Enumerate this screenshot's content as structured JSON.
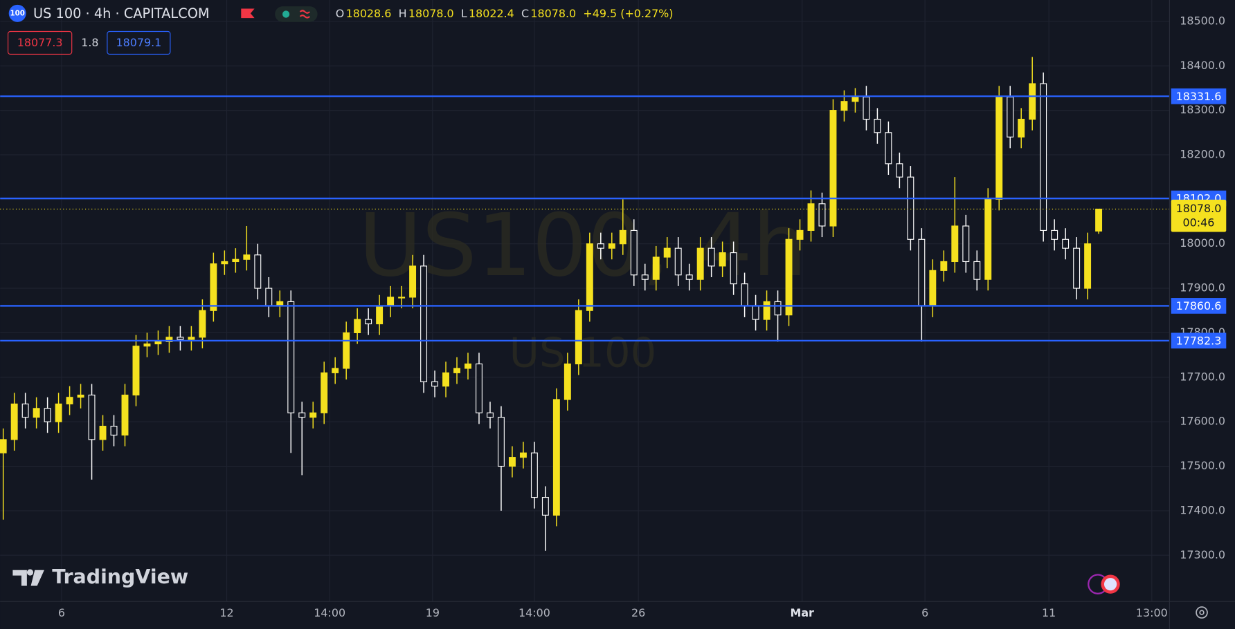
{
  "header": {
    "badge": "100",
    "title": "US 100 · 4h · CAPITALCOM",
    "ohlc": [
      {
        "key": "O",
        "value": "18028.6"
      },
      {
        "key": "H",
        "value": "18078.0"
      },
      {
        "key": "L",
        "value": "18022.4"
      },
      {
        "key": "C",
        "value": "18078.0"
      }
    ],
    "change": "+49.5 (+0.27%)",
    "bid": "18077.3",
    "spread": "1.8",
    "ask": "18079.1"
  },
  "watermark": {
    "main": "US100, 4h",
    "sub": "US 100"
  },
  "logo": "TradingView",
  "chart_data": {
    "type": "candlestick",
    "up_color": "#f5e11f",
    "down_color": "#ffffff",
    "grid": true,
    "x": [
      0,
      1,
      2,
      3,
      4,
      5,
      6,
      7,
      8,
      9,
      10,
      11,
      12,
      13,
      14,
      15,
      16,
      17,
      18,
      19,
      20,
      21,
      22,
      23,
      24,
      25,
      26,
      27,
      28,
      29,
      30,
      31,
      32,
      33,
      34,
      35,
      36,
      37,
      38,
      39,
      40,
      41,
      42,
      43,
      44,
      45,
      46,
      47,
      48,
      49,
      50,
      51,
      52,
      53,
      54,
      55,
      56,
      57,
      58,
      59,
      60,
      61,
      62,
      63,
      64,
      65,
      66,
      67,
      68,
      69,
      70,
      71,
      72,
      73,
      74,
      75,
      76,
      77,
      78,
      79,
      80,
      81,
      82,
      83,
      84,
      85,
      86,
      87,
      88,
      89,
      90,
      91,
      92,
      93,
      94,
      95,
      96,
      97,
      98,
      99
    ],
    "open": [
      17530,
      17560,
      17640,
      17610,
      17630,
      17600,
      17640,
      17655,
      17660,
      17560,
      17590,
      17570,
      17660,
      17770,
      17775,
      17780,
      17790,
      17785,
      17790,
      17850,
      17955,
      17960,
      17965,
      17975,
      17900,
      17860,
      17870,
      17620,
      17610,
      17620,
      17710,
      17720,
      17800,
      17830,
      17820,
      17860,
      17880,
      17880,
      17950,
      17690,
      17680,
      17710,
      17720,
      17730,
      17620,
      17610,
      17500,
      17520,
      17530,
      17430,
      17390,
      17650,
      17730,
      17850,
      18000,
      17990,
      18000,
      18030,
      17930,
      17920,
      17970,
      17990,
      17930,
      17920,
      17990,
      17950,
      17980,
      17910,
      17860,
      17830,
      17870,
      17840,
      18010,
      18030,
      18090,
      18040,
      18300,
      18320,
      18330,
      18280,
      18250,
      18180,
      18150,
      18010,
      17860,
      17940,
      17960,
      18040,
      17960,
      17920,
      18100,
      18330,
      18240,
      18280,
      18360,
      18030,
      18010,
      17990,
      17900,
      18028.6
    ],
    "high": [
      17585,
      17665,
      17665,
      17655,
      17655,
      17665,
      17680,
      17685,
      17685,
      17615,
      17615,
      17685,
      17795,
      17800,
      17805,
      17815,
      17815,
      17815,
      17875,
      17980,
      17985,
      17990,
      18040,
      18000,
      17925,
      17895,
      17895,
      17645,
      17645,
      17735,
      17745,
      17825,
      17855,
      17855,
      17885,
      17905,
      17905,
      17975,
      17975,
      17715,
      17735,
      17745,
      17755,
      17755,
      17645,
      17635,
      17545,
      17555,
      17555,
      17455,
      17675,
      17755,
      17875,
      18025,
      18025,
      18025,
      18100,
      18055,
      17955,
      17995,
      18015,
      18015,
      17955,
      18015,
      18015,
      18005,
      18005,
      17935,
      17885,
      17895,
      17895,
      18035,
      18055,
      18120,
      18115,
      18325,
      18345,
      18350,
      18355,
      18305,
      18275,
      18205,
      18175,
      18035,
      17965,
      17985,
      18150,
      18065,
      17985,
      18125,
      18355,
      18355,
      18305,
      18420,
      18385,
      18055,
      18035,
      18015,
      18025,
      18078
    ],
    "low": [
      17380,
      17535,
      17585,
      17585,
      17575,
      17575,
      17615,
      17630,
      17470,
      17535,
      17545,
      17545,
      17635,
      17745,
      17750,
      17755,
      17760,
      17760,
      17765,
      17825,
      17930,
      17935,
      17940,
      17875,
      17835,
      17835,
      17530,
      17480,
      17585,
      17595,
      17685,
      17695,
      17775,
      17795,
      17795,
      17835,
      17855,
      17855,
      17665,
      17655,
      17655,
      17685,
      17695,
      17595,
      17585,
      17400,
      17475,
      17495,
      17405,
      17310,
      17365,
      17625,
      17705,
      17825,
      17965,
      17965,
      17975,
      17905,
      17895,
      17895,
      17945,
      17905,
      17895,
      17895,
      17925,
      17925,
      17885,
      17835,
      17805,
      17805,
      17780,
      17815,
      17985,
      18005,
      18015,
      18015,
      18275,
      18295,
      18255,
      18225,
      18155,
      18125,
      17985,
      17780,
      17835,
      17915,
      17935,
      17935,
      17895,
      17895,
      18075,
      18215,
      18215,
      18255,
      18005,
      17985,
      17965,
      17875,
      17875,
      18022.4
    ],
    "close": [
      17560,
      17640,
      17610,
      17630,
      17600,
      17640,
      17655,
      17660,
      17560,
      17590,
      17570,
      17660,
      17770,
      17775,
      17780,
      17790,
      17785,
      17790,
      17850,
      17955,
      17960,
      17965,
      17975,
      17900,
      17860,
      17870,
      17620,
      17610,
      17620,
      17710,
      17720,
      17800,
      17830,
      17820,
      17860,
      17880,
      17880,
      17950,
      17690,
      17680,
      17710,
      17720,
      17730,
      17620,
      17610,
      17500,
      17520,
      17530,
      17430,
      17390,
      17650,
      17730,
      17850,
      18000,
      17990,
      18000,
      18030,
      17930,
      17920,
      17970,
      17990,
      17930,
      17920,
      17990,
      17950,
      17980,
      17910,
      17860,
      17830,
      17870,
      17840,
      18010,
      18030,
      18090,
      18040,
      18300,
      18320,
      18330,
      18280,
      18250,
      18180,
      18150,
      18010,
      17860,
      17940,
      17960,
      18040,
      17960,
      17920,
      18100,
      18330,
      18240,
      18280,
      18360,
      18030,
      18010,
      17990,
      17900,
      18000,
      18078
    ],
    "xlim": [
      -0.28,
      105.4
    ],
    "ylim": [
      17196,
      18548
    ],
    "yticks": [
      {
        "value": 17300,
        "label": "17300.0"
      },
      {
        "value": 17400,
        "label": "17400.0"
      },
      {
        "value": 17500,
        "label": "17500.0"
      },
      {
        "value": 17600,
        "label": "17600.0"
      },
      {
        "value": 17700,
        "label": "17700.0"
      },
      {
        "value": 17800,
        "label": "17800.0"
      },
      {
        "value": 17900,
        "label": "17900.0"
      },
      {
        "value": 18000,
        "label": "18000.0"
      },
      {
        "value": 18100,
        "label": "18100.0"
      },
      {
        "value": 18200,
        "label": "18200.0"
      },
      {
        "value": 18300,
        "label": "18300.0"
      },
      {
        "value": 18400,
        "label": "18400.0"
      },
      {
        "value": 18500,
        "label": "18500.0"
      }
    ],
    "xticks": [
      {
        "value": 5.27,
        "label": "6"
      },
      {
        "value": 20.2,
        "label": "12"
      },
      {
        "value": 29.5,
        "label": "14:00"
      },
      {
        "value": 38.8,
        "label": "19"
      },
      {
        "value": 48.0,
        "label": "14:00"
      },
      {
        "value": 57.4,
        "label": "26"
      },
      {
        "value": 72.2,
        "label": "Mar"
      },
      {
        "value": 83.3,
        "label": "6"
      },
      {
        "value": 94.5,
        "label": "11"
      },
      {
        "value": 103.8,
        "label": "13:00"
      }
    ],
    "levels": [
      {
        "value": 18331.6,
        "label": "18331.6",
        "color": "#2962ff"
      },
      {
        "value": 18102.0,
        "label": "18102.0",
        "color": "#2962ff"
      },
      {
        "value": 17860.6,
        "label": "17860.6",
        "color": "#2962ff"
      },
      {
        "value": 17782.3,
        "label": "17782.3",
        "color": "#2962ff"
      }
    ],
    "last_price": {
      "value": 18078.0,
      "label": "18078.0",
      "countdown": "00:46",
      "color": "#f5e11f"
    }
  }
}
